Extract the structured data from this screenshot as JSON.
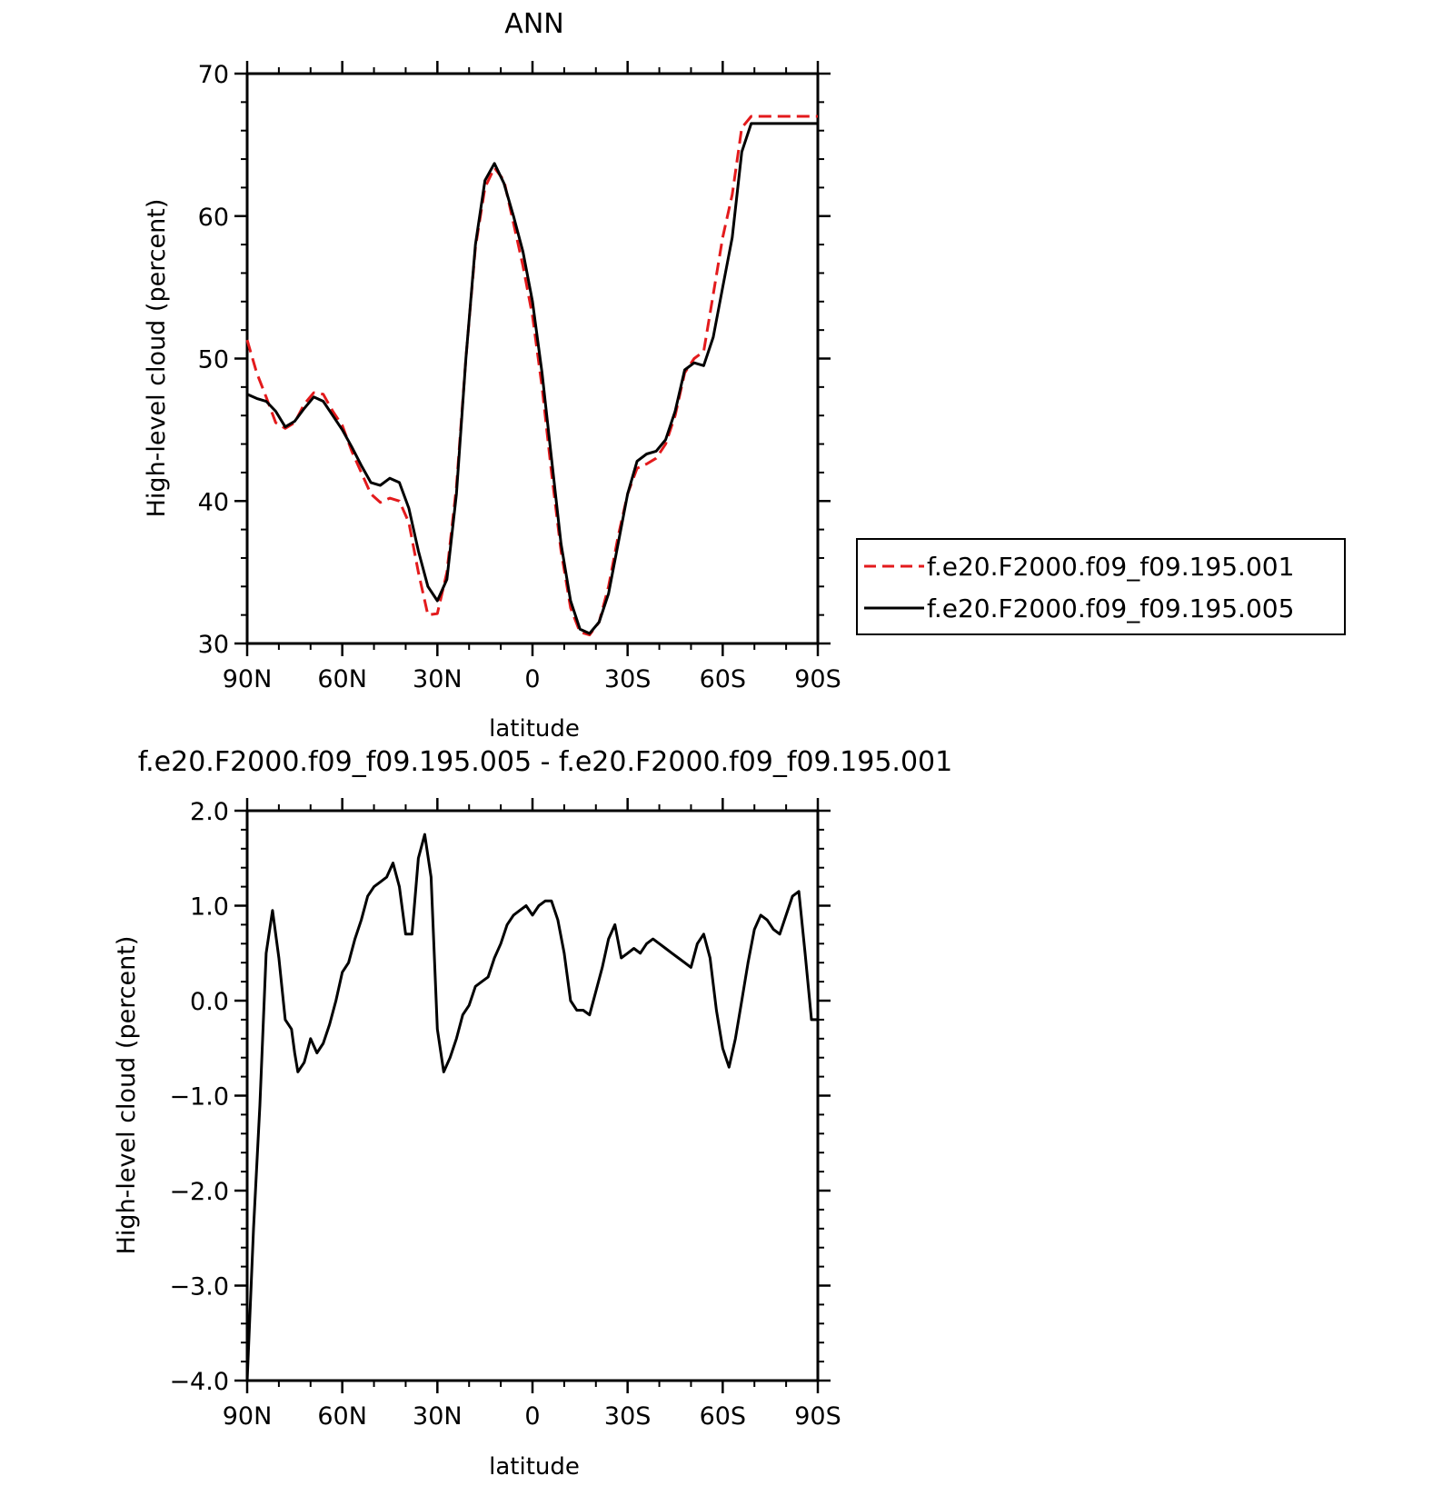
{
  "chart_data": [
    {
      "type": "line",
      "title": "ANN",
      "xlabel": "latitude",
      "ylabel": "High-level cloud (percent)",
      "xlim": [
        90,
        -90
      ],
      "ylim": [
        30,
        70
      ],
      "x_ticks": [
        90,
        60,
        30,
        0,
        -30,
        -60,
        -90
      ],
      "x_tick_labels": [
        "90N",
        "60N",
        "30N",
        "0",
        "30S",
        "60S",
        "90S"
      ],
      "y_ticks": [
        30,
        40,
        50,
        60,
        70
      ],
      "y_tick_labels": [
        "30",
        "40",
        "50",
        "60",
        "70"
      ],
      "legend": "right",
      "series": [
        {
          "name": "f.e20.F2000.f09_f09.195.001",
          "color": "#e31a1c",
          "style": "dashed",
          "x": [
            90,
            87,
            84,
            81,
            78,
            75,
            72,
            69,
            66,
            63,
            60,
            57,
            54,
            51,
            48,
            45,
            42,
            39,
            36,
            33,
            30,
            27,
            24,
            21,
            18,
            15,
            12,
            9,
            6,
            3,
            0,
            -3,
            -6,
            -9,
            -12,
            -15,
            -18,
            -21,
            -24,
            -27,
            -30,
            -33,
            -36,
            -39,
            -42,
            -45,
            -48,
            -51,
            -54,
            -57,
            -60,
            -63,
            -66,
            -69,
            -72,
            -75,
            -78,
            -81,
            -84,
            -87,
            -90
          ],
          "y": [
            51.3,
            49.0,
            47.3,
            45.5,
            45.1,
            45.5,
            46.8,
            47.6,
            47.5,
            46.3,
            45.3,
            43.5,
            42.0,
            40.5,
            39.9,
            40.2,
            40.0,
            38.5,
            35.0,
            32.0,
            32.1,
            35.0,
            41.0,
            50.0,
            57.8,
            62.0,
            63.4,
            62.5,
            59.5,
            56.5,
            53.0,
            48.0,
            42.0,
            36.5,
            32.5,
            30.8,
            30.6,
            31.5,
            34.0,
            37.5,
            40.5,
            42.3,
            42.6,
            43.0,
            44.0,
            46.0,
            49.0,
            50.0,
            50.5,
            54.5,
            58.5,
            61.5,
            66.2,
            67.0,
            67.0,
            67.0,
            67.0,
            67.0,
            67.0,
            67.0,
            67.0
          ]
        },
        {
          "name": "f.e20.F2000.f09_f09.195.005",
          "color": "#000000",
          "style": "solid",
          "x": [
            90,
            87,
            84,
            81,
            78,
            75,
            72,
            69,
            66,
            63,
            60,
            57,
            54,
            51,
            48,
            45,
            42,
            39,
            36,
            33,
            30,
            27,
            24,
            21,
            18,
            15,
            12,
            9,
            6,
            3,
            0,
            -3,
            -6,
            -9,
            -12,
            -15,
            -18,
            -21,
            -24,
            -27,
            -30,
            -33,
            -36,
            -39,
            -42,
            -45,
            -48,
            -51,
            -54,
            -57,
            -60,
            -63,
            -66,
            -69,
            -72,
            -75,
            -78,
            -81,
            -84,
            -87,
            -90
          ],
          "y": [
            47.5,
            47.2,
            47.0,
            46.3,
            45.2,
            45.6,
            46.5,
            47.3,
            47.0,
            46.0,
            45.0,
            43.8,
            42.5,
            41.3,
            41.1,
            41.6,
            41.3,
            39.5,
            36.5,
            34.0,
            33.0,
            34.5,
            40.5,
            50.0,
            58.0,
            62.5,
            63.7,
            62.3,
            60.0,
            57.5,
            54.0,
            49.0,
            43.0,
            37.0,
            33.0,
            31.0,
            30.7,
            31.5,
            33.5,
            37.0,
            40.5,
            42.8,
            43.3,
            43.5,
            44.3,
            46.3,
            49.2,
            49.7,
            49.5,
            51.5,
            55.0,
            58.5,
            64.5,
            66.5,
            66.5,
            66.5,
            66.5,
            66.5,
            66.5,
            66.5,
            66.5
          ]
        }
      ]
    },
    {
      "type": "line",
      "title": "f.e20.F2000.f09_f09.195.005 - f.e20.F2000.f09_f09.195.001",
      "xlabel": "latitude",
      "ylabel": "High-level cloud (percent)",
      "xlim": [
        90,
        -90
      ],
      "ylim": [
        -4.0,
        2.0
      ],
      "x_ticks": [
        90,
        60,
        30,
        0,
        -30,
        -60,
        -90
      ],
      "x_tick_labels": [
        "90N",
        "60N",
        "30N",
        "0",
        "30S",
        "60S",
        "90S"
      ],
      "y_ticks": [
        -4.0,
        -3.0,
        -2.0,
        -1.0,
        0.0,
        1.0,
        2.0
      ],
      "y_tick_labels": [
        "−4.0",
        "−3.0",
        "−2.0",
        "−1.0",
        "0.0",
        "1.0",
        "2.0"
      ],
      "series": [
        {
          "color": "#000000",
          "style": "solid",
          "x": [
            90,
            88,
            86,
            84,
            82,
            80,
            78,
            76,
            75,
            74,
            72,
            70,
            68,
            66,
            64,
            62,
            60,
            58,
            56,
            54,
            52,
            50,
            48,
            46,
            44,
            42,
            40,
            38,
            37,
            36,
            34,
            32,
            30,
            28,
            26,
            24,
            22,
            20,
            18,
            16,
            14,
            12,
            10,
            8,
            6,
            4,
            2,
            0,
            -2,
            -4,
            -6,
            -8,
            -10,
            -12,
            -14,
            -16,
            -18,
            -20,
            -22,
            -24,
            -26,
            -28,
            -30,
            -32,
            -34,
            -36,
            -38,
            -40,
            -42,
            -44,
            -46,
            -48,
            -50,
            -52,
            -54,
            -56,
            -58,
            -60,
            -62,
            -64,
            -66,
            -68,
            -70,
            -72,
            -74,
            -76,
            -78,
            -80,
            -82,
            -84,
            -86,
            -88,
            -90
          ],
          "y": [
            -4.0,
            -2.4,
            -1.1,
            0.5,
            0.95,
            0.45,
            -0.2,
            -0.3,
            -0.55,
            -0.75,
            -0.65,
            -0.4,
            -0.55,
            -0.45,
            -0.25,
            0.0,
            0.3,
            0.4,
            0.65,
            0.85,
            1.1,
            1.2,
            1.25,
            1.3,
            1.45,
            1.2,
            0.7,
            0.7,
            1.1,
            1.5,
            1.75,
            1.3,
            -0.3,
            -0.75,
            -0.6,
            -0.4,
            -0.15,
            -0.05,
            0.15,
            0.2,
            0.25,
            0.45,
            0.6,
            0.8,
            0.9,
            0.95,
            1.0,
            0.9,
            1.0,
            1.05,
            1.05,
            0.85,
            0.5,
            0.0,
            -0.1,
            -0.1,
            -0.15,
            0.1,
            0.35,
            0.65,
            0.8,
            0.45,
            0.5,
            0.55,
            0.5,
            0.6,
            0.65,
            0.6,
            0.55,
            0.5,
            0.45,
            0.4,
            0.35,
            0.6,
            0.7,
            0.45,
            -0.1,
            -0.5,
            -0.7,
            -0.4,
            0.0,
            0.4,
            0.75,
            0.9,
            0.85,
            0.75,
            0.7,
            0.9,
            1.1,
            1.15,
            0.5,
            -0.2,
            -0.2
          ]
        }
      ]
    }
  ]
}
